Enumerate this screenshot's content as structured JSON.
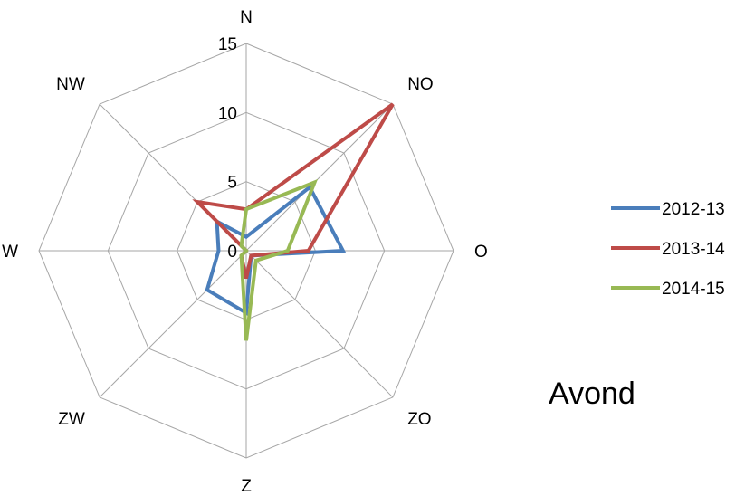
{
  "chart_data": {
    "type": "radar",
    "categories": [
      "N",
      "NO",
      "O",
      "ZO",
      "Z",
      "ZW",
      "W",
      "NW"
    ],
    "rmax": 15,
    "ticks": [
      0,
      5,
      10,
      15
    ],
    "series": [
      {
        "name": "2012-13",
        "color": "#4a7ebb",
        "values": [
          1,
          6.5,
          7,
          0.5,
          4.5,
          4,
          2,
          3
        ]
      },
      {
        "name": "2013-14",
        "color": "#be4b48",
        "values": [
          3,
          15,
          4.5,
          0.5,
          2,
          0.5,
          0,
          5
        ]
      },
      {
        "name": "2014-15",
        "color": "#98b954",
        "values": [
          3,
          7,
          3,
          1,
          6.5,
          0.5,
          0,
          0.5
        ]
      }
    ],
    "grid": true,
    "legend": "right",
    "annotation": "Avond"
  }
}
